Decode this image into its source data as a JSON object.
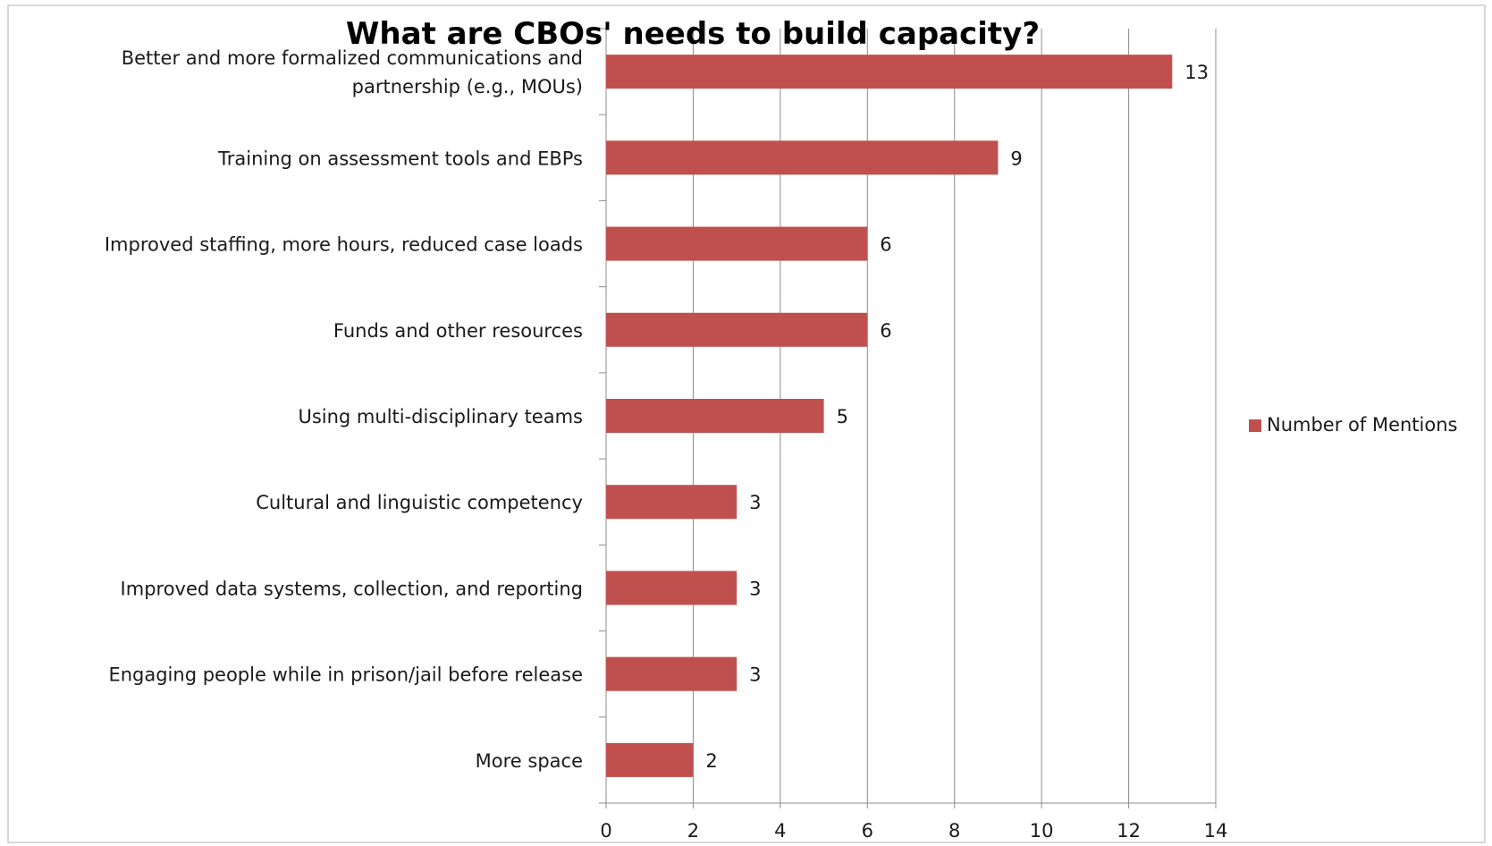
{
  "chart_data": {
    "type": "bar",
    "orientation": "horizontal",
    "title": "What are CBOs' needs to build capacity?",
    "xlabel": "",
    "ylabel": "",
    "categories": [
      [
        "Better and more formalized communications and",
        "partnership (e.g., MOUs)"
      ],
      [
        "Training on assessment tools and EBPs"
      ],
      [
        "Improved staffing, more hours, reduced case loads"
      ],
      [
        "Funds and other resources"
      ],
      [
        "Using multi-disciplinary teams"
      ],
      [
        "Cultural and linguistic competency"
      ],
      [
        "Improved data systems, collection, and reporting"
      ],
      [
        "Engaging people while in prison/jail before release"
      ],
      [
        "More space"
      ]
    ],
    "series": [
      {
        "name": "Number of Mentions",
        "values": [
          13,
          9,
          6,
          6,
          5,
          3,
          3,
          3,
          2
        ],
        "color": "#c0504d"
      }
    ],
    "xlim": [
      0,
      14
    ],
    "xticks": [
      0,
      2,
      4,
      6,
      8,
      10,
      12,
      14
    ],
    "grid": "vertical",
    "legend_position": "right"
  }
}
